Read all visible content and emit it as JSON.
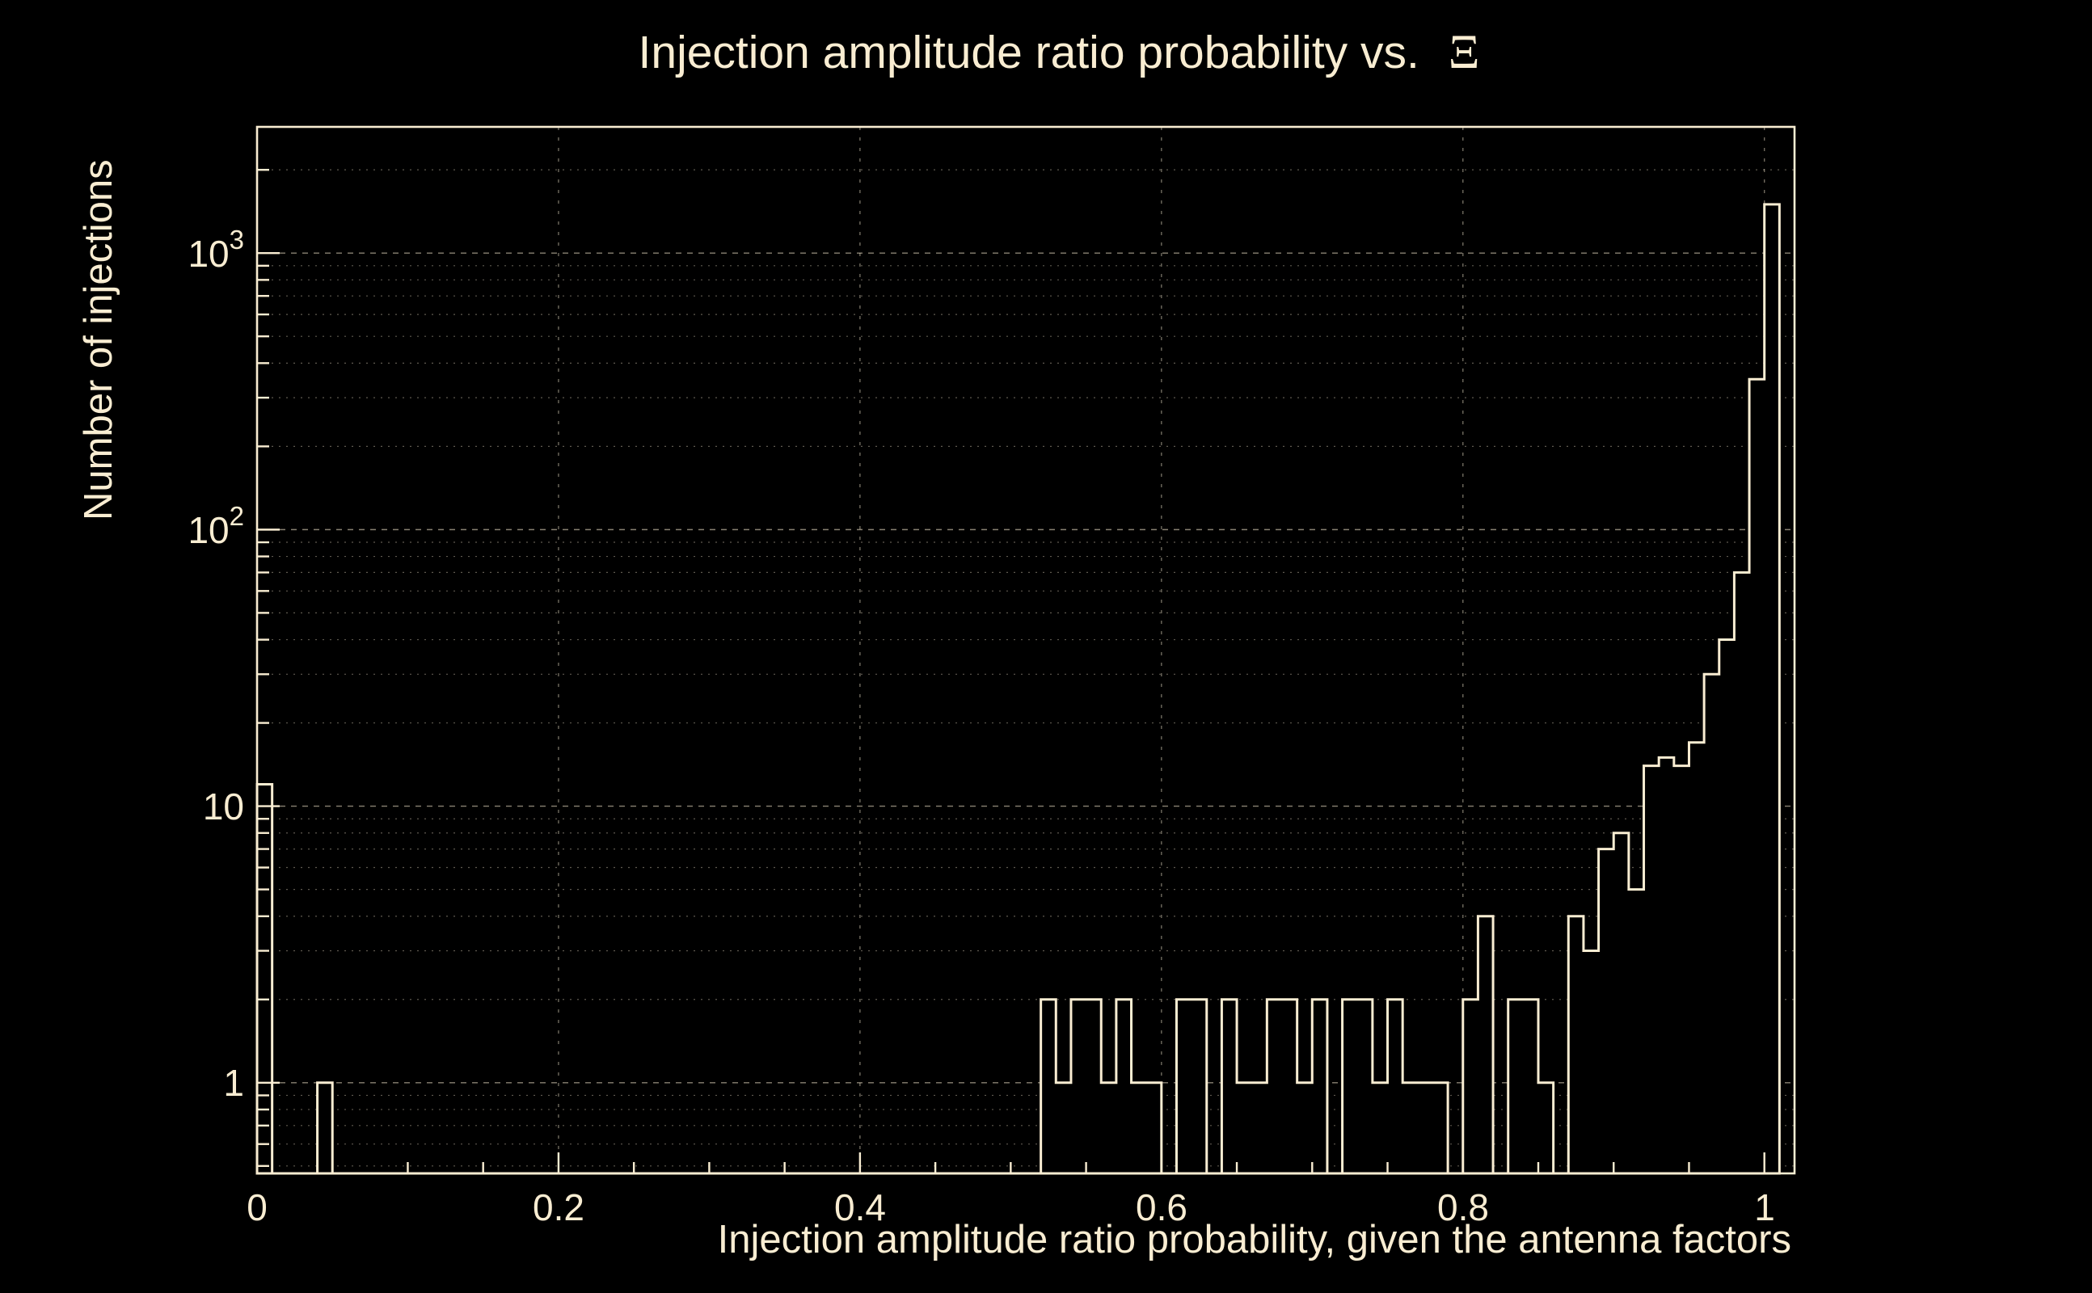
{
  "page": {
    "background": "#000000",
    "foreground": "#f9edd2"
  },
  "chart_data": {
    "type": "histogram",
    "title": {
      "text": "Injection amplitude ratio probability vs.",
      "symbol": "Ξ"
    },
    "xlabel": "Injection amplitude ratio probability, given the antenna factors",
    "ylabel": "Number of injections",
    "x_ticks": [
      0,
      0.2,
      0.4,
      0.6,
      0.8,
      1
    ],
    "x_tick_labels": [
      "0",
      "0.2",
      "0.4",
      "0.6",
      "0.8",
      "1"
    ],
    "x_minor_tick_step": 0.05,
    "y_scale": "log",
    "y_ticks": [
      1,
      10,
      100,
      1000
    ],
    "y_tick_labels": [
      {
        "base": "1",
        "exp": ""
      },
      {
        "base": "10",
        "exp": ""
      },
      {
        "base": "10",
        "exp": "2"
      },
      {
        "base": "10",
        "exp": "3"
      }
    ],
    "xlim": [
      0,
      1.02
    ],
    "ylim": [
      0.47,
      2860
    ],
    "grid": true,
    "line_color": "#f9edd2",
    "bin_width": 0.01,
    "bin_start": 0,
    "counts": [
      12,
      0,
      0,
      0,
      1,
      0,
      0,
      0,
      0,
      0,
      0,
      0,
      0,
      0,
      0,
      0,
      0,
      0,
      0,
      0,
      0,
      0,
      0,
      0,
      0,
      0,
      0,
      0,
      0,
      0,
      0,
      0,
      0,
      0,
      0,
      0,
      0,
      0,
      0,
      0,
      0,
      0,
      0,
      0,
      0,
      0,
      0,
      0,
      0,
      0,
      0,
      0,
      2,
      1,
      2,
      2,
      1,
      2,
      1,
      1,
      0,
      2,
      2,
      0,
      2,
      1,
      1,
      2,
      2,
      1,
      2,
      0,
      2,
      2,
      1,
      2,
      1,
      1,
      1,
      0,
      2,
      4,
      0,
      2,
      2,
      1,
      0,
      4,
      3,
      7,
      8,
      5,
      14,
      15,
      14,
      17,
      30,
      40,
      70,
      350,
      1500
    ]
  }
}
